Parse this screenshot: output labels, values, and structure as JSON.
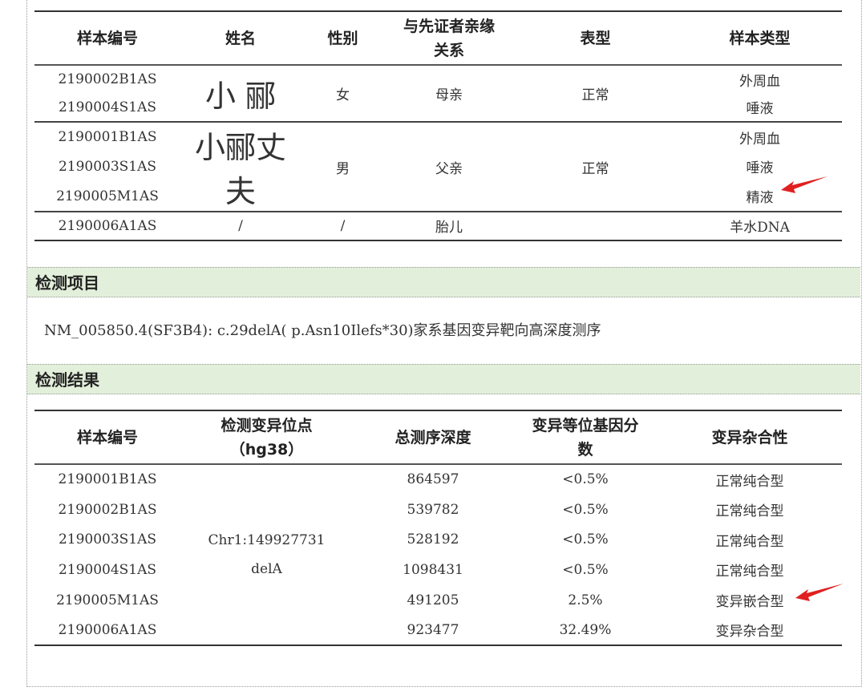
{
  "sample_table": {
    "headers": [
      "样本编号",
      "姓名",
      "性别",
      "与先证者亲缘关系",
      "表型",
      "样本类型"
    ],
    "groups": [
      {
        "samples": [
          "2190002B1AS",
          "2190004S1AS"
        ],
        "name": "小 郦",
        "sex": "女",
        "relation": "母亲",
        "phenotype": "正常",
        "types": [
          "外周血",
          "唾液"
        ]
      },
      {
        "samples": [
          "2190001B1AS",
          "2190003S1AS",
          "2190005M1AS"
        ],
        "name": "小郦丈夫",
        "sex": "男",
        "relation": "父亲",
        "phenotype": "正常",
        "types": [
          "外周血",
          "唾液",
          "精液"
        ]
      },
      {
        "samples": [
          "2190006A1AS"
        ],
        "name": "/",
        "sex": "/",
        "relation": "胎儿",
        "phenotype": "",
        "types": [
          "羊水DNA"
        ]
      }
    ]
  },
  "section_project": {
    "title": "检测项目",
    "text": "NM_005850.4(SF3B4): c.29delA( p.Asn10Ilefs*30)家系基因变异靶向高深度测序"
  },
  "section_result": {
    "title": "检测结果"
  },
  "result_table": {
    "headers": [
      "样本编号",
      "检测变异位点（hg38）",
      "总测序深度",
      "变异等位基因分数",
      "变异杂合性"
    ],
    "locus_line1": "Chr1:149927731",
    "locus_line2": "delA",
    "rows": [
      {
        "sample": "2190001B1AS",
        "depth": "864597",
        "fraction": "<0.5%",
        "zygosity": "正常纯合型"
      },
      {
        "sample": "2190002B1AS",
        "depth": "539782",
        "fraction": "<0.5%",
        "zygosity": "正常纯合型"
      },
      {
        "sample": "2190003S1AS",
        "depth": "528192",
        "fraction": "<0.5%",
        "zygosity": "正常纯合型"
      },
      {
        "sample": "2190004S1AS",
        "depth": "1098431",
        "fraction": "<0.5%",
        "zygosity": "正常纯合型"
      },
      {
        "sample": "2190005M1AS",
        "depth": "491205",
        "fraction": "2.5%",
        "zygosity": "变异嵌合型"
      },
      {
        "sample": "2190006A1AS",
        "depth": "923477",
        "fraction": "32.49%",
        "zygosity": "变异杂合型"
      }
    ]
  },
  "colors": {
    "section_bar": "#e2efda",
    "arrow": "#e02020"
  }
}
